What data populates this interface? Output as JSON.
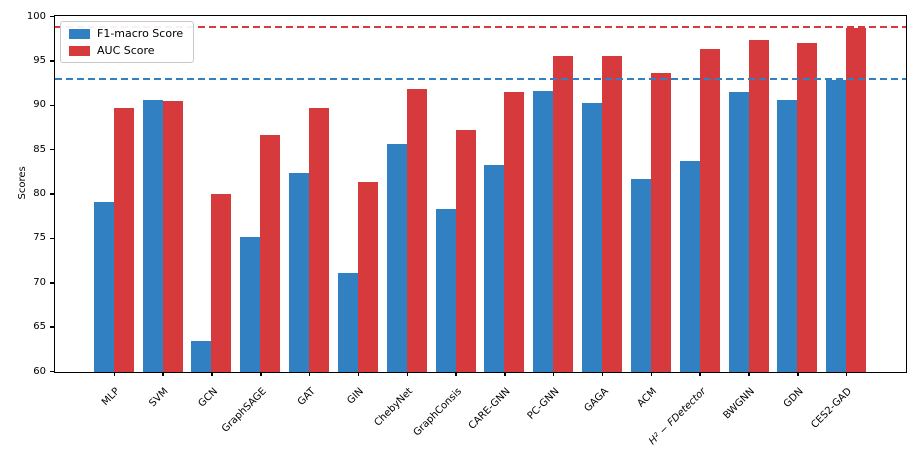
{
  "chart_data": {
    "type": "bar",
    "title": "",
    "xlabel": "",
    "ylabel": "Scores",
    "ylim": [
      60,
      100
    ],
    "yticks": [
      60,
      65,
      70,
      75,
      80,
      85,
      90,
      95,
      100
    ],
    "grid": false,
    "legend_position": "upper-left",
    "categories": [
      "MLP",
      "SVM",
      "GCN",
      "GraphSAGE",
      "GAT",
      "GIN",
      "ChebyNet",
      "GraphConsis",
      "CARE-GNN",
      "PC-GNN",
      "GAGA",
      "ACM",
      "H² − FDetector",
      "BWGNN",
      "GDN",
      "CES2-GAD"
    ],
    "italic_category_index": 12,
    "series": [
      {
        "name": "F1-macro Score",
        "color": "#3181c2",
        "values": [
          79.2,
          90.7,
          63.5,
          75.2,
          82.4,
          71.2,
          85.7,
          78.4,
          83.3,
          91.7,
          90.3,
          81.8,
          83.8,
          91.6,
          90.7,
          92.9
        ]
      },
      {
        "name": "AUC Score",
        "color": "#d73a3d",
        "values": [
          89.8,
          90.5,
          80.1,
          86.7,
          89.7,
          81.4,
          91.9,
          87.3,
          91.5,
          95.6,
          95.6,
          93.7,
          96.4,
          97.4,
          97.1,
          98.8
        ]
      }
    ],
    "reference_lines": [
      {
        "value": 92.9,
        "color": "#3181c2",
        "style": "dashed"
      },
      {
        "value": 98.8,
        "color": "#d73a3d",
        "style": "dashed"
      }
    ]
  }
}
